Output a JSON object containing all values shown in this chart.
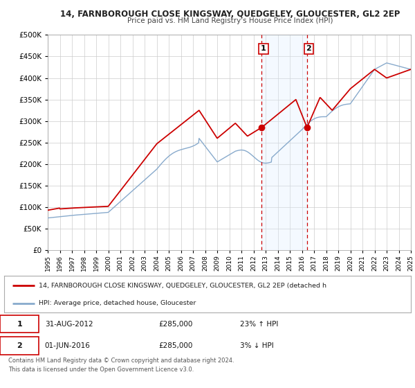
{
  "title": "14, FARNBOROUGH CLOSE KINGSWAY, QUEDGELEY, GLOUCESTER, GL2 2EP",
  "subtitle": "Price paid vs. HM Land Registry's House Price Index (HPI)",
  "legend_line1": "14, FARNBOROUGH CLOSE KINGSWAY, QUEDGELEY, GLOUCESTER, GL2 2EP (detached h",
  "legend_line2": "HPI: Average price, detached house, Gloucester",
  "annotation1_label": "1",
  "annotation1_date": "31-AUG-2012",
  "annotation1_price": "£285,000",
  "annotation1_hpi": "23% ↑ HPI",
  "annotation2_label": "2",
  "annotation2_date": "01-JUN-2016",
  "annotation2_price": "£285,000",
  "annotation2_hpi": "3% ↓ HPI",
  "footer1": "Contains HM Land Registry data © Crown copyright and database right 2024.",
  "footer2": "This data is licensed under the Open Government Licence v3.0.",
  "ylim": [
    0,
    500000
  ],
  "red_line_color": "#cc0000",
  "blue_line_color": "#88aacc",
  "shade_color": "#ddeeff",
  "grid_color": "#cccccc",
  "bg_color": "#ffffff",
  "plot_bg_color": "#ffffff",
  "marker1_date_year": 2012.67,
  "marker1_value": 285000,
  "marker2_date_year": 2016.42,
  "marker2_value": 285000,
  "vline1_year": 2012.67,
  "vline2_year": 2016.42
}
